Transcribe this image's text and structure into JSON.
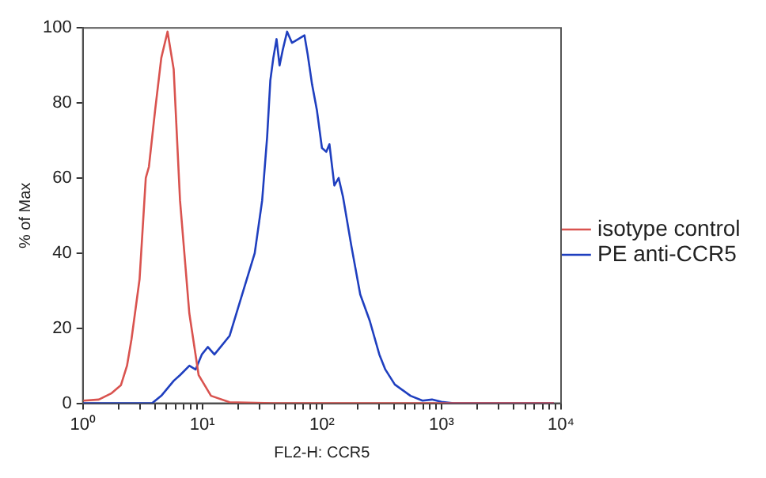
{
  "chart_data": {
    "type": "line",
    "xlabel": "FL2-H: CCR5",
    "ylabel": "% of Max",
    "log": "x",
    "grid": false,
    "legend": "right",
    "marker": "none",
    "line_style": "solid",
    "xlim": [
      1,
      10000
    ],
    "ylim": [
      0,
      100
    ],
    "xticks": [
      {
        "value": 1,
        "label": "10⁰"
      },
      {
        "value": 2,
        "label": null
      },
      {
        "value": 3,
        "label": null
      },
      {
        "value": 4,
        "label": null
      },
      {
        "value": 5,
        "label": null
      },
      {
        "value": 6,
        "label": null
      },
      {
        "value": 7,
        "label": null
      },
      {
        "value": 8,
        "label": null
      },
      {
        "value": 9,
        "label": null
      },
      {
        "value": 10,
        "label": "10¹"
      },
      {
        "value": 20,
        "label": null
      },
      {
        "value": 30,
        "label": null
      },
      {
        "value": 40,
        "label": null
      },
      {
        "value": 50,
        "label": null
      },
      {
        "value": 60,
        "label": null
      },
      {
        "value": 70,
        "label": null
      },
      {
        "value": 80,
        "label": null
      },
      {
        "value": 90,
        "label": null
      },
      {
        "value": 100,
        "label": "10²"
      },
      {
        "value": 200,
        "label": null
      },
      {
        "value": 300,
        "label": null
      },
      {
        "value": 400,
        "label": null
      },
      {
        "value": 500,
        "label": null
      },
      {
        "value": 600,
        "label": null
      },
      {
        "value": 700,
        "label": null
      },
      {
        "value": 800,
        "label": null
      },
      {
        "value": 900,
        "label": null
      },
      {
        "value": 1000,
        "label": "10³"
      },
      {
        "value": 2000,
        "label": null
      },
      {
        "value": 3000,
        "label": null
      },
      {
        "value": 4000,
        "label": null
      },
      {
        "value": 5000,
        "label": null
      },
      {
        "value": 6000,
        "label": null
      },
      {
        "value": 7000,
        "label": null
      },
      {
        "value": 8000,
        "label": null
      },
      {
        "value": 9000,
        "label": null
      },
      {
        "value": 10000,
        "label": "10⁴"
      }
    ],
    "yticks": [
      0,
      20,
      40,
      60,
      80,
      100
    ],
    "series": [
      {
        "name": "isotype control",
        "color": "#d9534f",
        "x": [
          1.01,
          1.36,
          1.74,
          2.08,
          2.34,
          2.55,
          2.98,
          3.36,
          3.57,
          4.02,
          4.53,
          5.11,
          5.75,
          6.5,
          7.77,
          9.3,
          11.8,
          16.9,
          39,
          8700
        ],
        "values": [
          0.7,
          1,
          2.7,
          4.8,
          10,
          17,
          33,
          60,
          63,
          78,
          92,
          99,
          89,
          54,
          24,
          7.5,
          2,
          0.3,
          0,
          0
        ]
      },
      {
        "name": "PE anti-CCR5",
        "color": "#1f3fbf",
        "x": [
          1.01,
          3.79,
          4.53,
          5.76,
          6.5,
          7.78,
          8.77,
          9.89,
          11.1,
          12.6,
          14.2,
          16.9,
          21.5,
          27.4,
          31.6,
          34.8,
          37,
          39.2,
          41.7,
          44.2,
          46.9,
          51.1,
          56.2,
          63.4,
          71.4,
          75.9,
          82.6,
          90.8,
          100,
          108.7,
          115.5,
          127,
          138,
          150,
          176,
          209,
          251,
          302,
          339,
          407,
          550,
          694,
          832,
          1000,
          1260,
          8700
        ],
        "values": [
          0,
          0,
          2,
          6,
          7.5,
          10,
          9,
          13,
          15,
          13,
          15,
          18,
          29,
          40,
          54,
          71,
          86,
          92,
          97,
          90,
          94,
          99,
          96,
          97,
          98,
          93,
          85,
          78,
          68,
          67,
          69,
          58,
          60,
          55,
          42,
          29,
          22,
          13,
          9,
          5,
          2,
          0.7,
          1,
          0.4,
          0,
          0
        ]
      }
    ]
  }
}
